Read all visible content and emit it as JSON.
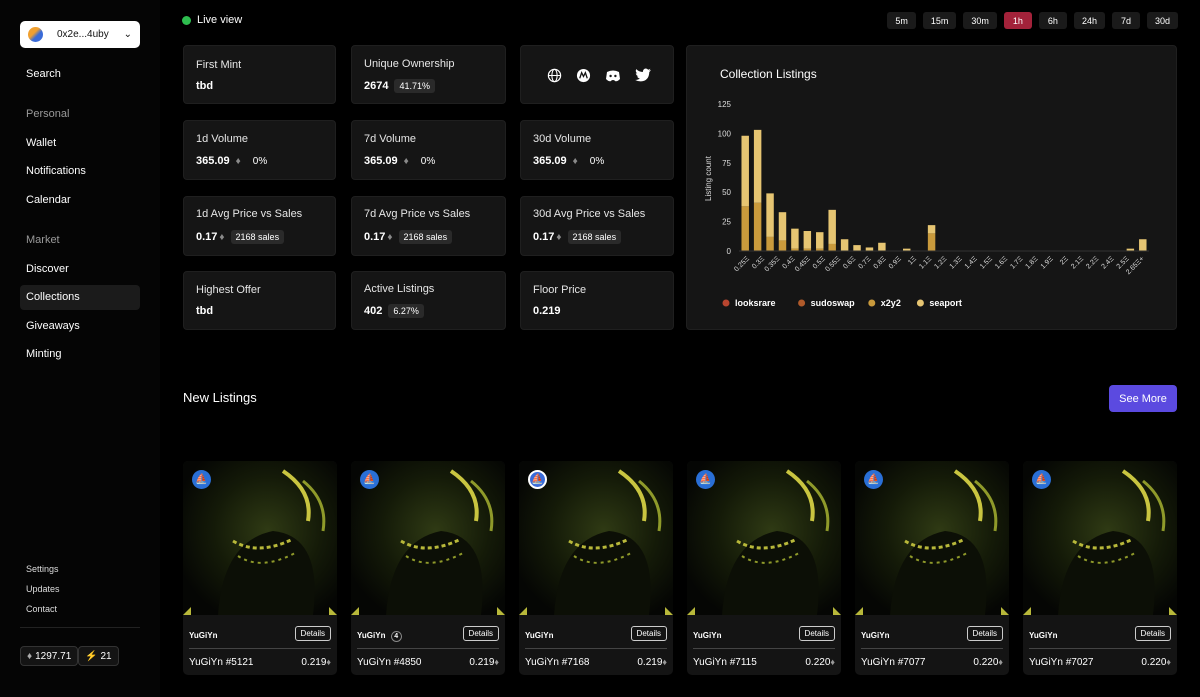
{
  "wallet": {
    "address": "0x2e...4uby"
  },
  "nav": {
    "search": "Search",
    "personal": "Personal",
    "wallet": "Wallet",
    "notifications": "Notifications",
    "calendar": "Calendar",
    "market": "Market",
    "discover": "Discover",
    "collections": "Collections",
    "giveaways": "Giveaways",
    "minting": "Minting"
  },
  "footer": {
    "settings": "Settings",
    "updates": "Updates",
    "contact": "Contact",
    "eth_balance": "1297.71",
    "bolt_count": "21"
  },
  "live_label": "Live view",
  "time_ranges": [
    "5m",
    "15m",
    "30m",
    "1h",
    "6h",
    "24h",
    "7d",
    "30d"
  ],
  "active_range": "1h",
  "stats": {
    "first_mint": {
      "label": "First Mint",
      "value": "tbd"
    },
    "unique_ownership": {
      "label": "Unique Ownership",
      "value": "2674",
      "pct": "41.71%"
    },
    "vol_1d": {
      "label": "1d Volume",
      "value": "365.09",
      "pct": "0%"
    },
    "vol_7d": {
      "label": "7d Volume",
      "value": "365.09",
      "pct": "0%"
    },
    "vol_30d": {
      "label": "30d Volume",
      "value": "365.09",
      "pct": "0%"
    },
    "avg_1d": {
      "label": "1d Avg Price vs Sales",
      "value": "0.17",
      "sales": "2168 sales"
    },
    "avg_7d": {
      "label": "7d Avg Price vs Sales",
      "value": "0.17",
      "sales": "2168 sales"
    },
    "avg_30d": {
      "label": "30d Avg Price vs Sales",
      "value": "0.17",
      "sales": "2168 sales"
    },
    "highest_offer": {
      "label": "Highest Offer",
      "value": "tbd"
    },
    "active_listings": {
      "label": "Active Listings",
      "value": "402",
      "pct": "6.27%"
    },
    "floor_price": {
      "label": "Floor Price",
      "value": "0.219"
    }
  },
  "social_icons": [
    "globe-icon",
    "marketplace-icon",
    "discord-icon",
    "twitter-icon"
  ],
  "chart_data": {
    "type": "bar",
    "title": "Collection Listings",
    "ylabel": "Listing count",
    "xlabel": "",
    "ylim": [
      0,
      125
    ],
    "yticks": [
      0,
      25,
      50,
      75,
      100,
      125
    ],
    "categories": [
      "0.25Ξ",
      "0.3Ξ",
      "0.35Ξ",
      "0.4Ξ",
      "0.45Ξ",
      "0.5Ξ",
      "0.55Ξ",
      "0.6Ξ",
      "0.65Ξ",
      "0.7Ξ",
      "0.75Ξ",
      "0.8Ξ",
      "0.85Ξ",
      "0.9Ξ",
      "0.95Ξ",
      "1Ξ",
      "1.1Ξ",
      "1.2Ξ",
      "1.3Ξ",
      "1.4Ξ",
      "1.5Ξ",
      "1.6Ξ",
      "1.7Ξ",
      "1.8Ξ",
      "1.9Ξ",
      "2Ξ",
      "2.1Ξ",
      "2.2Ξ",
      "2.3Ξ",
      "2.4Ξ",
      "2.5Ξ",
      "2.6Ξ",
      "2.65Ξ+"
    ],
    "xtick_labels": [
      "0.25Ξ",
      "0.3Ξ",
      "0.35Ξ",
      "0.4Ξ",
      "0.45Ξ",
      "0.5Ξ",
      "0.55Ξ",
      "0.6Ξ",
      "0.7Ξ",
      "0.8Ξ",
      "0.9Ξ",
      "1Ξ",
      "1.1Ξ",
      "1.2Ξ",
      "1.3Ξ",
      "1.4Ξ",
      "1.5Ξ",
      "1.6Ξ",
      "1.7Ξ",
      "1.8Ξ",
      "1.9Ξ",
      "2Ξ",
      "2.1Ξ",
      "2.2Ξ",
      "2.4Ξ",
      "2.5Ξ",
      "2.65Ξ+"
    ],
    "series": [
      {
        "name": "looksrare",
        "color": "#b8452f",
        "values": [
          0,
          0,
          0,
          0,
          0,
          0,
          0,
          0,
          0,
          0,
          0,
          0,
          0,
          0,
          0,
          0,
          0,
          0,
          0,
          0,
          0,
          0,
          0,
          0,
          0,
          0,
          0,
          0,
          0,
          0,
          0,
          0,
          0
        ]
      },
      {
        "name": "sudoswap",
        "color": "#b05a2a",
        "values": [
          0,
          0,
          0,
          0,
          0,
          0,
          0,
          0,
          0,
          0,
          0,
          0,
          0,
          0,
          0,
          0,
          0,
          0,
          0,
          0,
          0,
          0,
          0,
          0,
          0,
          0,
          0,
          0,
          0,
          0,
          0,
          0,
          0
        ]
      },
      {
        "name": "x2y2",
        "color": "#c99a3c",
        "values": [
          38,
          41,
          12,
          9,
          2,
          2,
          2,
          6,
          0,
          0,
          0,
          0,
          0,
          0,
          0,
          15,
          0,
          0,
          0,
          0,
          0,
          0,
          0,
          0,
          0,
          0,
          0,
          0,
          0,
          0,
          0,
          0,
          0
        ]
      },
      {
        "name": "seaport",
        "color": "#e6c572",
        "values": [
          60,
          62,
          37,
          24,
          17,
          15,
          14,
          29,
          10,
          5,
          3,
          7,
          0,
          2,
          0,
          7,
          0,
          0,
          0,
          0,
          0,
          0,
          0,
          0,
          0,
          0,
          0,
          0,
          0,
          0,
          0,
          2,
          10
        ]
      }
    ],
    "legend_position": "bottom-left",
    "grid": false
  },
  "new_listings": {
    "title": "New Listings",
    "see_more": "See More",
    "details_label": "Details",
    "items": [
      {
        "collection": "YuGiYn",
        "token": "YuGiYn #5121",
        "price": "0.219",
        "badge_count": ""
      },
      {
        "collection": "YuGiYn",
        "token": "YuGiYn #4850",
        "price": "0.219",
        "badge_count": "4"
      },
      {
        "collection": "YuGiYn",
        "token": "YuGiYn #7168",
        "price": "0.219",
        "badge_count": ""
      },
      {
        "collection": "YuGiYn",
        "token": "YuGiYn #7115",
        "price": "0.220",
        "badge_count": ""
      },
      {
        "collection": "YuGiYn",
        "token": "YuGiYn #7077",
        "price": "0.220",
        "badge_count": ""
      },
      {
        "collection": "YuGiYn",
        "token": "YuGiYn #7027",
        "price": "0.220",
        "badge_count": ""
      }
    ]
  }
}
